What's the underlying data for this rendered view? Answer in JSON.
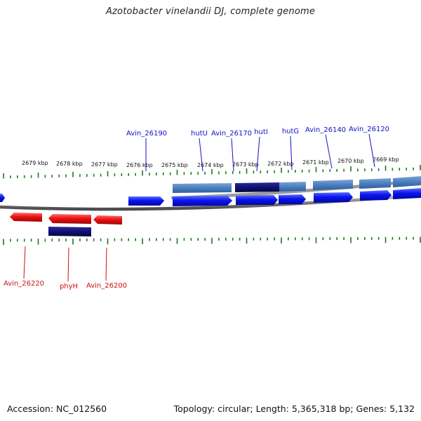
{
  "title": "Azotobacter vinelandii DJ, complete genome",
  "footer": {
    "accession": "Accession: NC_012560",
    "summary": "Topology: circular; Length: 5,365,318 bp; Genes: 5,132"
  },
  "scale_labels": [
    "2679 kbp",
    "2678 kbp",
    "2677 kbp",
    "2676 kbp",
    "2675 kbp",
    "2674 kbp",
    "2673 kbp",
    "2672 kbp",
    "2671 kbp",
    "2670 kbp",
    "2669 kbp"
  ],
  "gene_labels_top": [
    "Avin_26190",
    "hutU",
    "Avin_26170",
    "hutI",
    "hutG",
    "Avin_26140",
    "Avin_26120"
  ],
  "gene_labels_bottom": [
    "Avin_26220",
    "phyH",
    "Avin_26200"
  ],
  "colors": {
    "forward_gene": "#0a14f0",
    "reverse_gene": "#ee1111",
    "cds_light": "#4a7fbf",
    "cds_dark": "#101070",
    "tick": "#1a7a1a",
    "backbone": "#8a8a8a",
    "label_top": "#1010c8",
    "label_bottom": "#cc1010"
  }
}
